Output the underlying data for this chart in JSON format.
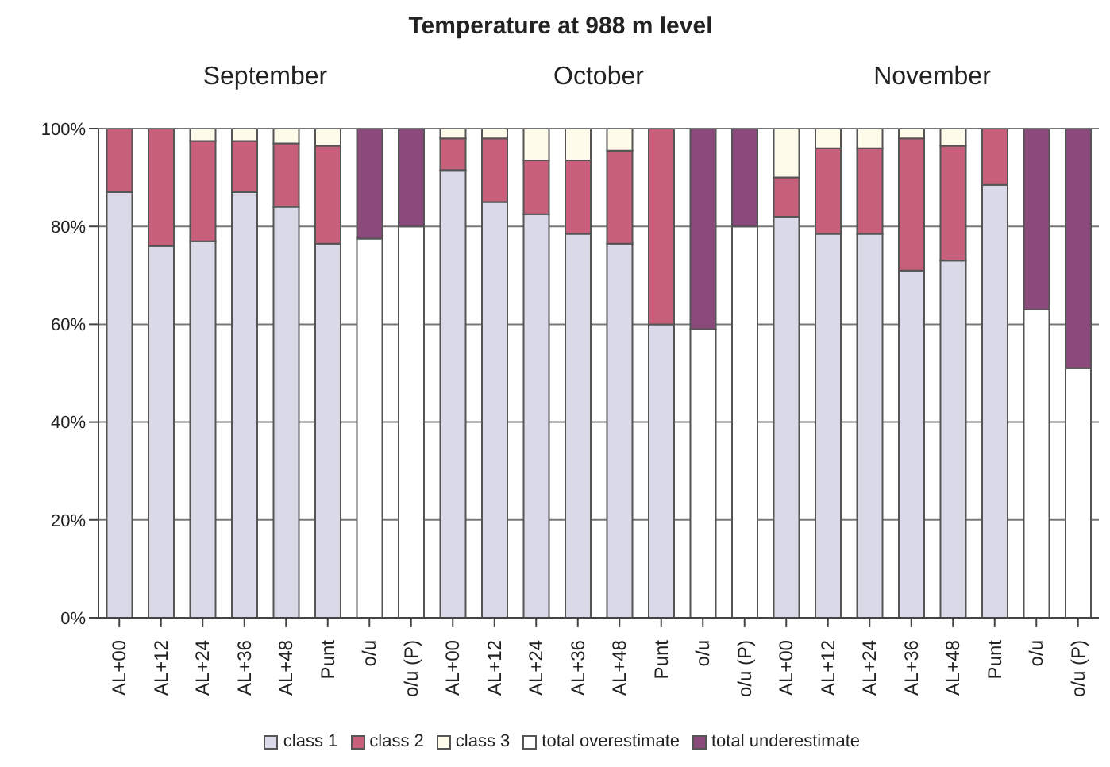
{
  "chart_data": {
    "type": "bar",
    "title": "Temperature at 988 m level",
    "stacked": true,
    "categories": [
      "AL+00",
      "AL+12",
      "AL+24",
      "AL+36",
      "AL+48",
      "Punt",
      "o/u",
      "o/u (P)",
      "AL+00",
      "AL+12",
      "AL+24",
      "AL+36",
      "AL+48",
      "Punt",
      "o/u",
      "o/u (P)",
      "AL+00",
      "AL+12",
      "AL+24",
      "AL+36",
      "AL+48",
      "Punt",
      "o/u",
      "o/u (P)"
    ],
    "series": [
      {
        "name": "class 1",
        "color": "#d9d9e8",
        "values": [
          87,
          76,
          77,
          87,
          84,
          76.5,
          null,
          null,
          91.5,
          85,
          82.5,
          78.5,
          76.5,
          60,
          null,
          null,
          82,
          78.5,
          78.5,
          71,
          73,
          88.5,
          null,
          null
        ]
      },
      {
        "name": "class 2",
        "color": "#c8607c",
        "values": [
          13,
          24,
          20.5,
          10.5,
          13,
          20,
          null,
          null,
          6.5,
          13,
          11,
          15,
          19,
          40,
          null,
          null,
          8,
          17.5,
          17.5,
          27,
          23.5,
          11.5,
          null,
          null
        ]
      },
      {
        "name": "class 3",
        "color": "#fffbea",
        "values": [
          null,
          null,
          2.5,
          2.5,
          3,
          3.5,
          null,
          null,
          2,
          2,
          6.5,
          6.5,
          4.5,
          null,
          null,
          null,
          10,
          4,
          4,
          2,
          3.5,
          null,
          null,
          null
        ]
      },
      {
        "name": "total overestimate",
        "color": "#ffffff",
        "values": [
          null,
          null,
          null,
          null,
          null,
          null,
          77.5,
          80,
          null,
          null,
          null,
          null,
          null,
          null,
          59,
          80,
          null,
          null,
          null,
          null,
          null,
          null,
          63,
          51
        ]
      },
      {
        "name": "total underestimate",
        "color": "#8a4a7c",
        "values": [
          null,
          null,
          null,
          null,
          null,
          null,
          22.5,
          20,
          null,
          null,
          null,
          null,
          null,
          null,
          41,
          20,
          null,
          null,
          null,
          null,
          null,
          null,
          37,
          49
        ]
      }
    ],
    "ylim": [
      0,
      100
    ],
    "yticks": [
      {
        "value": 0,
        "label": "0%"
      },
      {
        "value": 20,
        "label": "20%"
      },
      {
        "value": 40,
        "label": "40%"
      },
      {
        "value": 60,
        "label": "60%"
      },
      {
        "value": 80,
        "label": "80%"
      },
      {
        "value": 100,
        "label": "100%"
      }
    ],
    "grid": "y",
    "legend": "bottom",
    "annotations": [
      "September",
      "October",
      "November"
    ]
  }
}
